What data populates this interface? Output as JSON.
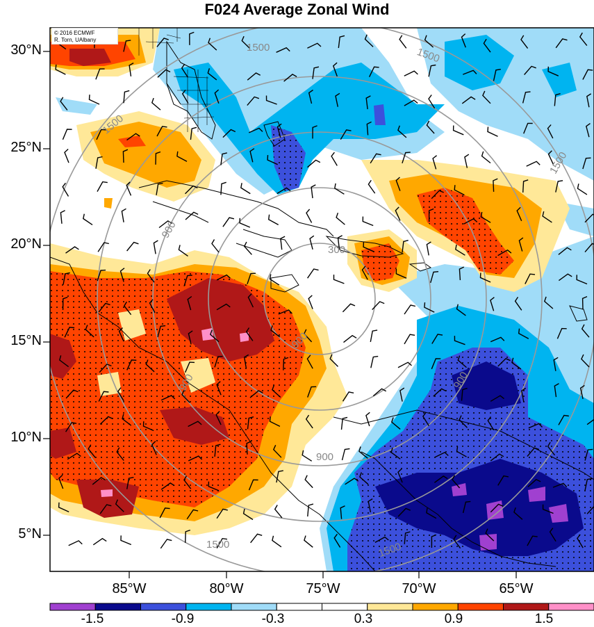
{
  "title": "F024 Average Zonal Wind",
  "copyright": {
    "line1": "© 2016 ECMWF",
    "line2": "R. Torn, UAlbany"
  },
  "axes": {
    "lat_labels": [
      "30°N",
      "25°N",
      "20°N",
      "15°N",
      "10°N",
      "5°N"
    ],
    "lon_labels": [
      "85°W",
      "80°W",
      "75°W",
      "70°W",
      "65°W"
    ]
  },
  "range_ring_labels": [
    "300",
    "900",
    "900",
    "900",
    "900",
    "900",
    "1500",
    "1500",
    "1500",
    "1500",
    "1500",
    "1500"
  ],
  "colorbar": {
    "colors": [
      "#a040d0",
      "#0a0a8c",
      "#3c50dc",
      "#00b4f0",
      "#a0dcf8",
      "#ffffff",
      "#ffffff",
      "#ffe898",
      "#ffa800",
      "#ff4400",
      "#b01818",
      "#ff90c8"
    ],
    "labels": [
      "-1.5",
      "-0.9",
      "-0.3",
      "0.3",
      "0.9",
      "1.5"
    ]
  }
}
